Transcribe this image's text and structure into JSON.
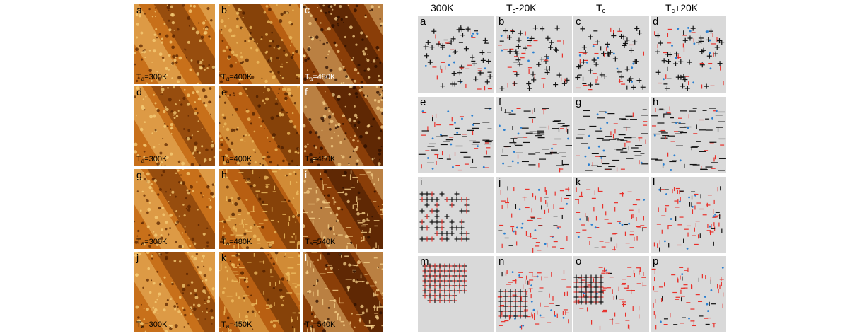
{
  "stm_panels": [
    {
      "letter": "a",
      "temp": "300K"
    },
    {
      "letter": "b",
      "temp": "400K"
    },
    {
      "letter": "c",
      "temp": "480K"
    },
    {
      "letter": "d",
      "temp": "300K"
    },
    {
      "letter": "e",
      "temp": "400K"
    },
    {
      "letter": "f",
      "temp": "480K"
    },
    {
      "letter": "g",
      "temp": "300K"
    },
    {
      "letter": "h",
      "temp": "480K"
    },
    {
      "letter": "i",
      "temp": "540K"
    },
    {
      "letter": "j",
      "temp": "300K"
    },
    {
      "letter": "k",
      "temp": "450K"
    },
    {
      "letter": "l",
      "temp": "540K"
    }
  ],
  "temp_prefix": "T",
  "temp_sub": "a",
  "sim_headers": [
    {
      "main": "300K",
      "sub": "",
      "suffix": ""
    },
    {
      "main": "T",
      "sub": "c",
      "suffix": "-20K"
    },
    {
      "main": "T",
      "sub": "c",
      "suffix": ""
    },
    {
      "main": "T",
      "sub": "c",
      "suffix": "+20K"
    }
  ],
  "sim_letters": [
    "a",
    "b",
    "c",
    "d",
    "e",
    "f",
    "g",
    "h",
    "i",
    "j",
    "k",
    "l",
    "m",
    "n",
    "o",
    "p"
  ],
  "colors": {
    "stm_dark": "#3a1600",
    "stm_mid": "#b55a10",
    "stm_light": "#f6c46a",
    "sim_bg": "#d9d9d9",
    "sim_black": "#111111",
    "sim_red": "#e8302a",
    "sim_blue": "#2a7fd0"
  }
}
